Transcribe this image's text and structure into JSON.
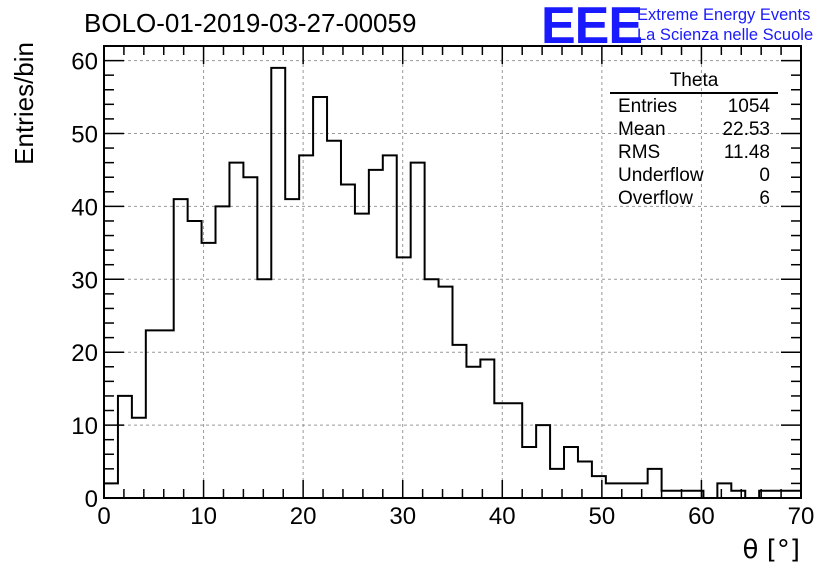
{
  "chart_data": {
    "type": "bar",
    "title": "BOLO-01-2019-03-27-00059",
    "xlabel": "θ [°]",
    "ylabel": "Entries/bin",
    "xlim": [
      0,
      70
    ],
    "ylim": [
      0,
      62
    ],
    "x_ticks": [
      0,
      10,
      20,
      30,
      40,
      50,
      60,
      70
    ],
    "y_ticks": [
      0,
      10,
      20,
      30,
      40,
      50,
      60
    ],
    "grid": true,
    "bin_width": 1.4,
    "bin_edges_start": 0,
    "values": [
      2,
      14,
      11,
      23,
      23,
      41,
      38,
      35,
      40,
      46,
      44,
      30,
      59,
      41,
      47,
      55,
      49,
      43,
      39,
      45,
      47,
      33,
      46,
      30,
      29,
      21,
      18,
      19,
      13,
      13,
      7,
      10,
      4,
      7,
      5,
      3,
      2,
      2,
      2,
      4,
      1,
      1,
      1,
      0,
      2,
      1,
      0,
      1,
      1,
      1
    ],
    "stats_box": {
      "title": "Theta",
      "rows": [
        {
          "label": "Entries",
          "value": "1054"
        },
        {
          "label": "Mean",
          "value": "22.53"
        },
        {
          "label": "RMS",
          "value": "11.48"
        },
        {
          "label": "Underflow",
          "value": "0"
        },
        {
          "label": "Overflow",
          "value": "6"
        }
      ]
    }
  },
  "logo": {
    "mark": "EEE",
    "line1": "Extreme Energy Events",
    "line2": "La Scienza nelle Scuole"
  },
  "colors": {
    "logo": "#1a1aff",
    "line": "#000000",
    "grid": "#999999"
  }
}
